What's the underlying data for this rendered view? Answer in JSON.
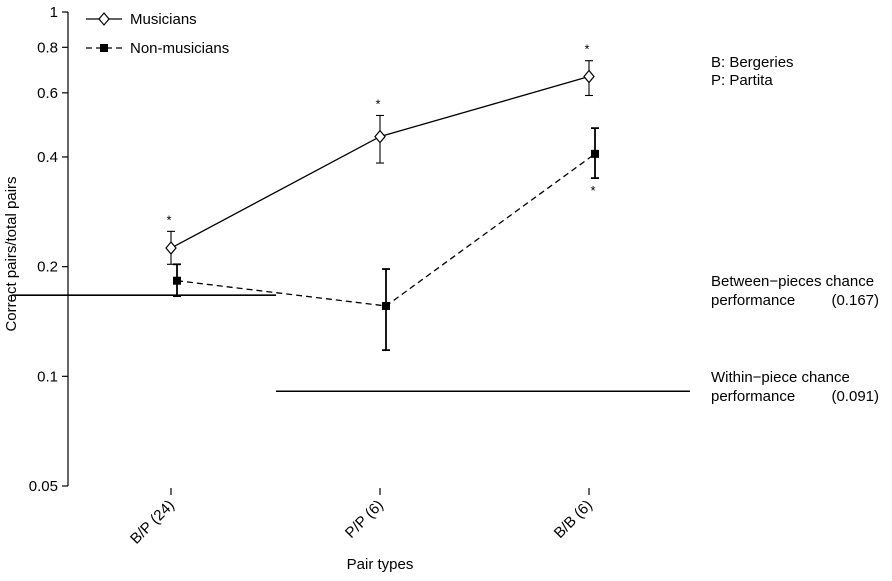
{
  "chart_data": {
    "type": "line",
    "title": "",
    "xlabel": "Pair types",
    "ylabel": "Correct pairs/total pairs",
    "yscale": "log",
    "ylim": [
      0.05,
      1
    ],
    "yticks": [
      0.05,
      0.1,
      0.2,
      0.4,
      0.6,
      0.8,
      1
    ],
    "ytick_labels": [
      "0.05",
      "0.1",
      "0.2",
      "0.4",
      "0.6",
      "0.8",
      "1"
    ],
    "categories": [
      "B/P (24)",
      "P/P (6)",
      "B/B (6)"
    ],
    "legend_position": "top-left",
    "series": [
      {
        "name": "Musicians",
        "marker": "diamond-open",
        "line": "solid",
        "values": [
          0.225,
          0.455,
          0.665
        ],
        "err_low": [
          0.203,
          0.385,
          0.59
        ],
        "err_high": [
          0.25,
          0.52,
          0.735
        ],
        "significance": [
          "*",
          "*",
          "*"
        ],
        "significance_side": [
          "above",
          "above",
          "above"
        ]
      },
      {
        "name": "Non-musicians",
        "marker": "square-filled",
        "line": "dashed",
        "values": [
          0.183,
          0.156,
          0.408
        ],
        "err_low": [
          0.166,
          0.118,
          0.35
        ],
        "err_high": [
          0.203,
          0.197,
          0.48
        ],
        "significance": [
          "",
          "",
          "*"
        ],
        "significance_side": [
          "",
          "",
          "below"
        ]
      }
    ],
    "reference_lines": [
      {
        "label_line1": "Between−pieces chance",
        "label_line2": "performance",
        "value_label": "(0.167)",
        "value": 0.167,
        "extent": "first-category"
      },
      {
        "label_line1": "Within−piece chance",
        "label_line2": "performance",
        "value_label": "(0.091)",
        "value": 0.091,
        "extent": "second-and-third-categories"
      }
    ],
    "key": [
      "B: Bergeries",
      "P: Partita"
    ]
  }
}
